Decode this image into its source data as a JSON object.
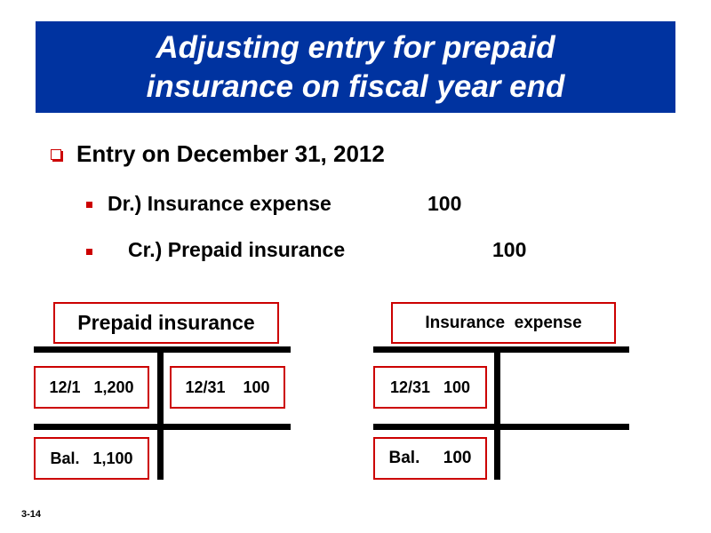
{
  "title": {
    "line1": "Adjusting entry for prepaid",
    "line2": "insurance on fiscal year end"
  },
  "entry_heading": "Entry on December 31, 2012",
  "debit": {
    "label": "Dr.) Insurance expense",
    "amount": "100"
  },
  "credit": {
    "label": "Cr.) Prepaid insurance",
    "amount": "100"
  },
  "prepaid_account": {
    "title": "Prepaid insurance",
    "debit_entry": "12/1   1,200",
    "credit_entry": "12/31    100",
    "balance": "Bal.   1,100"
  },
  "expense_account": {
    "title": "Insurance  expense",
    "debit_entry": "12/31   100",
    "balance": "Bal.     100"
  },
  "slide_number": "3-14",
  "colors": {
    "title_bg": "#0033a0",
    "accent": "#cc0000"
  },
  "icons": {
    "heading_bullet": "q-checkbox-icon",
    "sub_bullet": "square-bullet-icon"
  }
}
